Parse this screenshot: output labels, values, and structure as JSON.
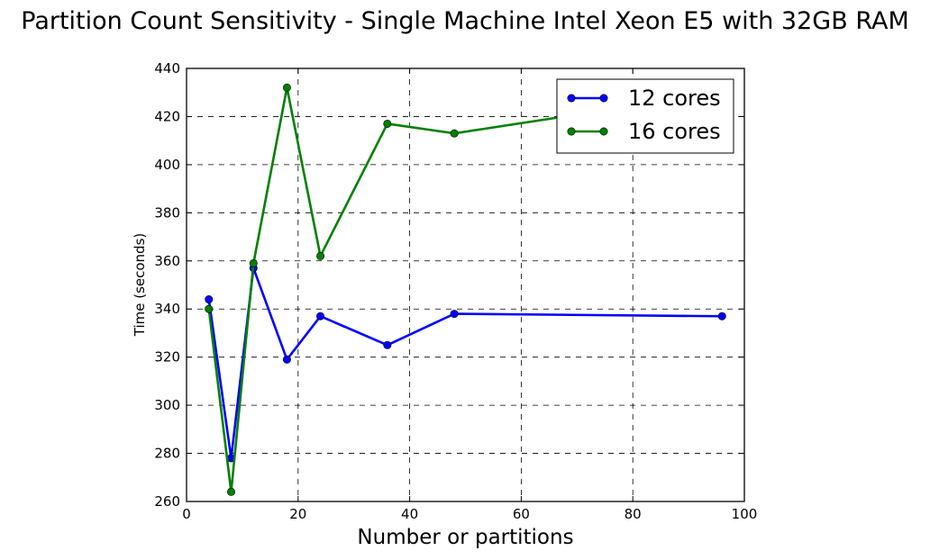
{
  "chart_data": {
    "type": "line",
    "title": "Partition Count Sensitivity - Single Machine Intel Xeon E5 with 32GB RAM",
    "xlabel": "Number or partitions",
    "ylabel": "Time (seconds)",
    "xlim": [
      0,
      100
    ],
    "ylim": [
      260,
      440
    ],
    "xticks": [
      0,
      20,
      40,
      60,
      80,
      100
    ],
    "yticks": [
      260,
      280,
      300,
      320,
      340,
      360,
      380,
      400,
      420,
      440
    ],
    "grid": true,
    "legend_position": "top-right",
    "series": [
      {
        "name": "12 cores",
        "color": "#0000ff",
        "x": [
          4,
          8,
          12,
          18,
          24,
          36,
          48,
          96
        ],
        "y": [
          344,
          278,
          357,
          319,
          337,
          325,
          338,
          337
        ]
      },
      {
        "name": "16 cores",
        "color": "#008000",
        "x": [
          4,
          8,
          12,
          18,
          24,
          36,
          48,
          96
        ],
        "y": [
          340,
          264,
          359,
          432,
          362,
          417,
          413,
          430
        ]
      }
    ]
  }
}
